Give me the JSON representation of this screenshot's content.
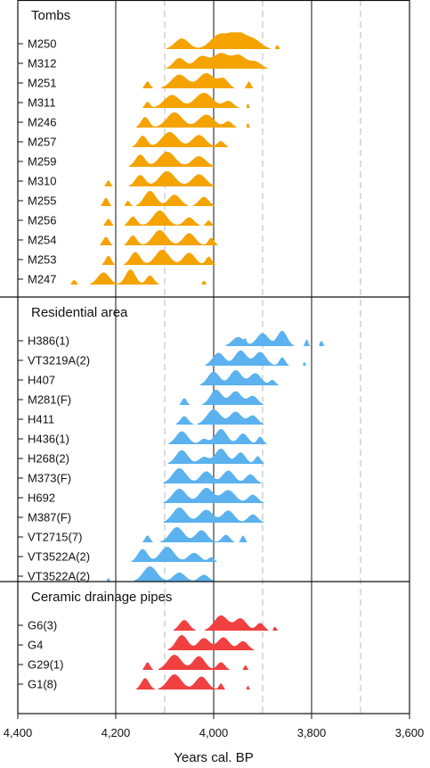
{
  "chart_data": {
    "type": "ridgeline",
    "xlabel": "Years cal. BP",
    "xlim": [
      4400,
      3600
    ],
    "x_reversed": true,
    "x_ticks": [
      "4,400",
      "4,200",
      "4,000",
      "3,800",
      "3,600"
    ],
    "x_tick_values": [
      4400,
      4200,
      4000,
      3800,
      3600
    ],
    "solid_gridlines": [
      4200,
      4000,
      3800
    ],
    "dashed_gridlines": [
      4100,
      3900,
      3700
    ],
    "colors": {
      "Tombs": "#F5A300",
      "Residential area": "#5BB2EE",
      "Ceramic drainage pipes": "#F04040"
    },
    "panels": [
      {
        "title": "Tombs",
        "color": "#F5A300",
        "series": [
          {
            "name": "M250",
            "peaks": [
              [
                4065,
                14,
                0.7
              ],
              [
                3988,
                18,
                0.95
              ],
              [
                3952,
                15,
                1.0
              ],
              [
                3920,
                16,
                0.65
              ],
              [
                3870,
                3,
                0.25
              ]
            ]
          },
          {
            "name": "M312",
            "peaks": [
              [
                4070,
                12,
                0.7
              ],
              [
                4025,
                14,
                0.8
              ],
              [
                3985,
                16,
                1.0
              ],
              [
                3948,
                14,
                0.85
              ],
              [
                3915,
                12,
                0.45
              ]
            ]
          },
          {
            "name": "M251",
            "peaks": [
              [
                4135,
                5,
                0.45
              ],
              [
                4070,
                16,
                0.9
              ],
              [
                4015,
                16,
                1.0
              ],
              [
                3980,
                10,
                0.6
              ],
              [
                3928,
                4,
                0.45
              ]
            ]
          },
          {
            "name": "M311",
            "peaks": [
              [
                4135,
                5,
                0.4
              ],
              [
                4085,
                16,
                0.85
              ],
              [
                4020,
                18,
                1.0
              ],
              [
                3970,
                10,
                0.45
              ],
              [
                3930,
                2,
                0.3
              ]
            ]
          },
          {
            "name": "M246",
            "peaks": [
              [
                4140,
                8,
                0.7
              ],
              [
                4080,
                16,
                1.0
              ],
              [
                4015,
                16,
                0.85
              ],
              [
                3970,
                8,
                0.4
              ],
              [
                3930,
                2,
                0.3
              ]
            ]
          },
          {
            "name": "M257",
            "peaks": [
              [
                4145,
                9,
                0.75
              ],
              [
                4090,
                16,
                1.0
              ],
              [
                4030,
                14,
                0.8
              ],
              [
                3985,
                7,
                0.4
              ]
            ]
          },
          {
            "name": "M259",
            "peaks": [
              [
                4150,
                10,
                0.8
              ],
              [
                4095,
                16,
                1.0
              ],
              [
                4030,
                14,
                0.7
              ]
            ]
          },
          {
            "name": "M310",
            "peaks": [
              [
                4215,
                4,
                0.4
              ],
              [
                4150,
                10,
                0.75
              ],
              [
                4095,
                16,
                1.0
              ],
              [
                4030,
                14,
                0.8
              ]
            ]
          },
          {
            "name": "M255",
            "peaks": [
              [
                4220,
                5,
                0.55
              ],
              [
                4175,
                4,
                0.35
              ],
              [
                4130,
                12,
                1.0
              ],
              [
                4080,
                12,
                0.75
              ],
              [
                4020,
                10,
                0.6
              ]
            ]
          },
          {
            "name": "M256",
            "peaks": [
              [
                4215,
                5,
                0.45
              ],
              [
                4165,
                8,
                0.6
              ],
              [
                4110,
                14,
                1.0
              ],
              [
                4050,
                10,
                0.55
              ],
              [
                4010,
                5,
                0.35
              ]
            ]
          },
          {
            "name": "M254",
            "peaks": [
              [
                4220,
                6,
                0.55
              ],
              [
                4165,
                8,
                0.65
              ],
              [
                4110,
                14,
                1.0
              ],
              [
                4050,
                12,
                0.8
              ],
              [
                4005,
                6,
                0.5
              ]
            ]
          },
          {
            "name": "M253",
            "peaks": [
              [
                4215,
                6,
                0.6
              ],
              [
                4160,
                10,
                0.85
              ],
              [
                4105,
                14,
                1.0
              ],
              [
                4050,
                12,
                0.8
              ],
              [
                4010,
                6,
                0.55
              ]
            ]
          },
          {
            "name": "M247",
            "peaks": [
              [
                4285,
                4,
                0.3
              ],
              [
                4225,
                12,
                0.8
              ],
              [
                4170,
                10,
                1.0
              ],
              [
                4130,
                8,
                0.6
              ],
              [
                4020,
                3,
                0.25
              ]
            ]
          }
        ]
      },
      {
        "title": "Residential area",
        "color": "#5BB2EE",
        "series": [
          {
            "name": "H386(1)",
            "peaks": [
              [
                3950,
                12,
                0.6
              ],
              [
                3900,
                12,
                0.85
              ],
              [
                3860,
                10,
                1.0
              ],
              [
                3810,
                3,
                0.45
              ],
              [
                3780,
                3,
                0.35
              ],
              [
                3935,
                2,
                0.25
              ]
            ]
          },
          {
            "name": "VT3219A(2)",
            "peaks": [
              [
                3990,
                12,
                0.85
              ],
              [
                3945,
                12,
                1.0
              ],
              [
                3905,
                12,
                0.9
              ],
              [
                3860,
                6,
                0.55
              ],
              [
                3815,
                2,
                0.25
              ]
            ]
          },
          {
            "name": "H407",
            "peaks": [
              [
                4000,
                12,
                0.9
              ],
              [
                3955,
                12,
                1.0
              ],
              [
                3915,
                12,
                0.8
              ],
              [
                3880,
                6,
                0.35
              ]
            ]
          },
          {
            "name": "M281(F)",
            "peaks": [
              [
                4060,
                5,
                0.45
              ],
              [
                3995,
                12,
                1.0
              ],
              [
                3955,
                12,
                0.9
              ],
              [
                3920,
                10,
                0.6
              ]
            ]
          },
          {
            "name": "H411",
            "peaks": [
              [
                4060,
                8,
                0.55
              ],
              [
                4000,
                14,
                1.0
              ],
              [
                3955,
                12,
                0.85
              ],
              [
                3920,
                10,
                0.6
              ]
            ]
          },
          {
            "name": "H436(1)",
            "peaks": [
              [
                4065,
                12,
                0.85
              ],
              [
                4020,
                8,
                0.35
              ],
              [
                3985,
                12,
                1.0
              ],
              [
                3940,
                10,
                0.7
              ],
              [
                3905,
                6,
                0.5
              ]
            ]
          },
          {
            "name": "H268(2)",
            "peaks": [
              [
                4065,
                12,
                0.9
              ],
              [
                4020,
                10,
                0.45
              ],
              [
                3985,
                12,
                1.0
              ],
              [
                3945,
                10,
                0.75
              ],
              [
                3910,
                6,
                0.5
              ]
            ]
          },
          {
            "name": "M373(F)",
            "peaks": [
              [
                4070,
                14,
                1.0
              ],
              [
                4015,
                12,
                0.8
              ],
              [
                3970,
                12,
                0.85
              ],
              [
                3925,
                10,
                0.6
              ]
            ]
          },
          {
            "name": "H692",
            "peaks": [
              [
                4070,
                14,
                0.95
              ],
              [
                4015,
                14,
                1.0
              ],
              [
                3970,
                14,
                0.85
              ],
              [
                3920,
                10,
                0.55
              ]
            ]
          },
          {
            "name": "M387(F)",
            "peaks": [
              [
                4070,
                14,
                1.0
              ],
              [
                4015,
                14,
                0.85
              ],
              [
                3970,
                12,
                0.8
              ],
              [
                3920,
                10,
                0.55
              ]
            ]
          },
          {
            "name": "VT2715(7)",
            "peaks": [
              [
                4135,
                5,
                0.45
              ],
              [
                4075,
                14,
                1.0
              ],
              [
                4025,
                12,
                0.8
              ],
              [
                3975,
                8,
                0.5
              ],
              [
                3940,
                4,
                0.45
              ]
            ]
          },
          {
            "name": "VT3522A(2)",
            "peaks": [
              [
                4145,
                10,
                0.85
              ],
              [
                4095,
                14,
                1.0
              ],
              [
                4040,
                12,
                0.6
              ],
              [
                4005,
                6,
                0.3
              ]
            ]
          },
          {
            "name": "VT3522A(2)",
            "peaks": [
              [
                4215,
                2,
                0.25
              ],
              [
                4130,
                14,
                1.0
              ],
              [
                4070,
                12,
                0.6
              ],
              [
                4020,
                10,
                0.45
              ]
            ]
          }
        ]
      },
      {
        "title": "Ceramic drainage pipes",
        "color": "#F04040",
        "series": [
          {
            "name": "G6(3)",
            "peaks": [
              [
                4060,
                10,
                0.7
              ],
              [
                3985,
                14,
                1.0
              ],
              [
                3945,
                12,
                0.8
              ],
              [
                3905,
                8,
                0.5
              ],
              [
                3875,
                3,
                0.25
              ]
            ]
          },
          {
            "name": "G4",
            "peaks": [
              [
                4065,
                12,
                1.0
              ],
              [
                4020,
                12,
                0.8
              ],
              [
                3980,
                12,
                0.85
              ],
              [
                3940,
                10,
                0.6
              ]
            ]
          },
          {
            "name": "G29(1)",
            "peaks": [
              [
                4135,
                5,
                0.5
              ],
              [
                4080,
                14,
                1.0
              ],
              [
                4030,
                12,
                0.9
              ],
              [
                3985,
                8,
                0.5
              ],
              [
                3935,
                3,
                0.3
              ]
            ]
          },
          {
            "name": "G1(8)",
            "peaks": [
              [
                4140,
                8,
                0.75
              ],
              [
                4080,
                14,
                1.0
              ],
              [
                4025,
                12,
                0.85
              ],
              [
                3985,
                4,
                0.4
              ],
              [
                3930,
                2,
                0.25
              ]
            ]
          }
        ]
      }
    ]
  }
}
